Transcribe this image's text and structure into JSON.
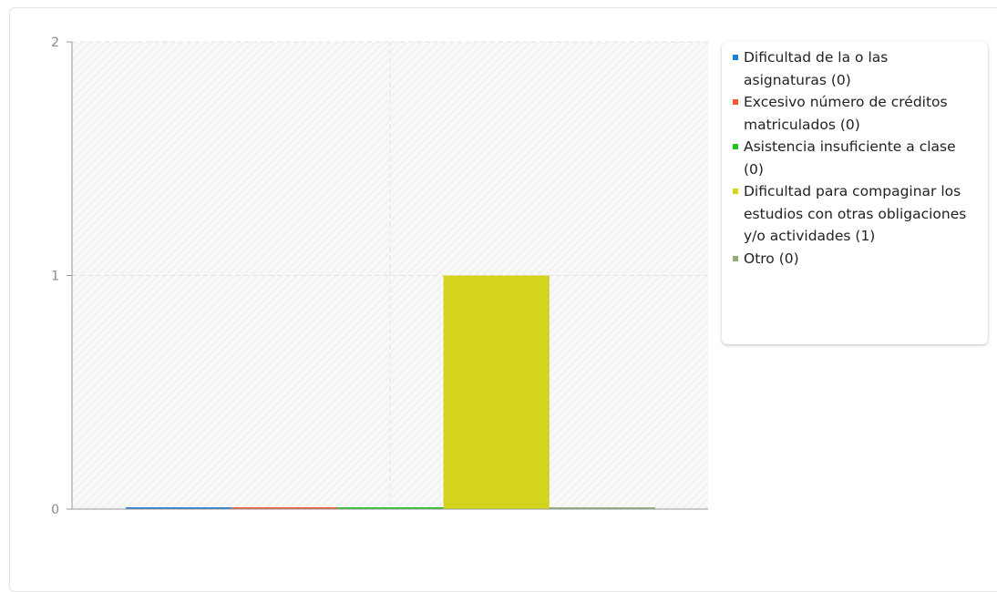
{
  "chart_data": {
    "type": "bar",
    "categories": [
      "Dificultad de la o las asignaturas",
      "Excesivo número de créditos matriculados",
      "Asistencia insuficiente a clase",
      "Dificultad para compaginar los estudios con otras obligaciones y/o actividades",
      "Otro"
    ],
    "series": [
      {
        "values": [
          0,
          0,
          0,
          1,
          0
        ],
        "colors": [
          "#1f7fd0",
          "#ee5a33",
          "#24c224",
          "#d4d41e",
          "#8fae7c"
        ]
      }
    ],
    "y_ticks": [
      "0",
      "1",
      "2"
    ],
    "ylim": [
      0,
      2
    ],
    "grid": true,
    "legend_position": "right",
    "legend_items": [
      {
        "label": "Dificultad de la o las asignaturas (0)",
        "color": "#1f7fd0"
      },
      {
        "label": "Excesivo número de créditos matriculados (0)",
        "color": "#ee5a33"
      },
      {
        "label": "Asistencia insuficiente a clase (0)",
        "color": "#24c224"
      },
      {
        "label": "Dificultad para compaginar los estudios con otras obligaciones y/o actividades (1)",
        "color": "#d4d41e"
      },
      {
        "label": "Otro (0)",
        "color": "#8fae7c"
      }
    ]
  }
}
